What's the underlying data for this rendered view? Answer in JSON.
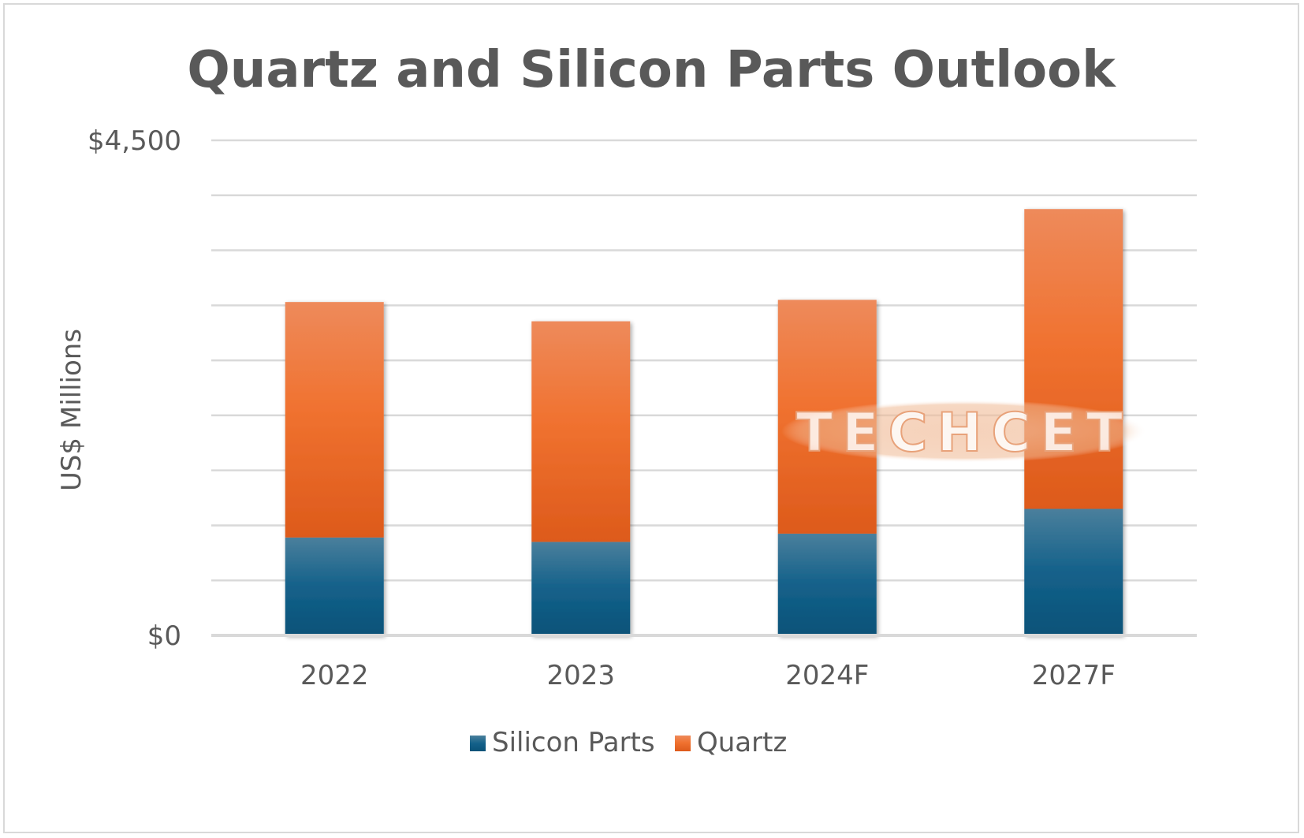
{
  "chart_data": {
    "type": "bar",
    "stacked": true,
    "title": "Quartz and Silicon Parts Outlook",
    "ylabel": "US$ Millions",
    "xlabel": "",
    "categories": [
      "2022",
      "2023",
      "2024F",
      "2027F"
    ],
    "series": [
      {
        "name": "Silicon Parts",
        "values": [
          890,
          850,
          925,
          1150
        ],
        "color": "#1a6a90"
      },
      {
        "name": "Quartz",
        "values": [
          2140,
          2005,
          2125,
          2725
        ],
        "color": "#ee6f2d"
      }
    ],
    "ylim": [
      0,
      4500
    ],
    "y_tick_labels": [
      {
        "value": 0,
        "label": "$0"
      },
      {
        "value": 4500,
        "label": "$4,500"
      }
    ],
    "gridlines": [
      0,
      500,
      1000,
      1500,
      2000,
      2500,
      3000,
      3500,
      4000,
      4500
    ],
    "grid": true,
    "legend_position": "bottom",
    "watermark": "TECHCET"
  }
}
